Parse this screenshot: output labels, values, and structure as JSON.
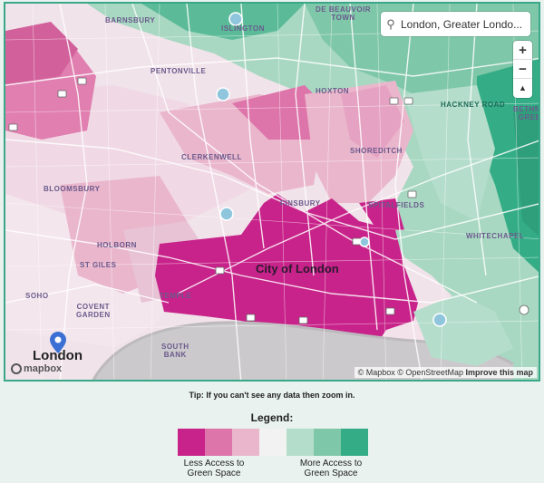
{
  "search": {
    "value": "London, Greater Londo...",
    "icon": "search-icon"
  },
  "zoom_controls": {
    "zoom_in": "+",
    "zoom_out": "−",
    "compass": "▲"
  },
  "map_labels": {
    "barnsbury": "BARNSBURY",
    "de_beauvoir": "DE BEAUVOIR\nTOWN",
    "islington": "ISLINGTON",
    "pentonville": "PENTONVILLE",
    "hoxton": "HOXTON",
    "haggerston": "HACKNEY ROAD",
    "bethnal_green": "BETHNA\nGREE",
    "shoreditch": "SHOREDITCH",
    "clerkenwell": "CLERKENWELL",
    "bloomsbury": "BLOOMSBURY",
    "finsbury": "FINSBURY",
    "spitalfields": "SPITALFIELDS",
    "whitechapel": "WHITECHAPEL",
    "holborn": "HOLBORN",
    "st_giles": "ST GILES",
    "soho": "SOHO",
    "covent_garden": "COVENT\nGARDEN",
    "temple": "TEMPLE",
    "south_bank": "SOUTH\nBANK",
    "city_of_london": "City of London",
    "london": "London"
  },
  "attribution": {
    "mapbox": "© Mapbox",
    "osm": "© OpenStreetMap",
    "improve": "Improve this map"
  },
  "logo": "mapbox",
  "tip": "Tip: If you can't see any data then zoom in.",
  "legend": {
    "title": "Legend:",
    "less_label": "Less Access to\nGreen Space",
    "more_label": "More Access to\nGreen Space",
    "colors": [
      "#c8238a",
      "#dd74aa",
      "#eab6cc",
      "#f2f2f2",
      "#b5ddcc",
      "#7fc7a9",
      "#34ad86"
    ]
  }
}
